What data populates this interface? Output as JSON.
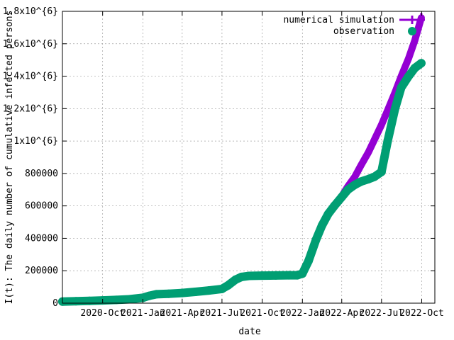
{
  "chart_data": {
    "type": "line",
    "xlabel": "date",
    "ylabel": "I(t): The daily number of cumulative infected persons",
    "xlim": [
      "2020-07-01",
      "2022-10-31"
    ],
    "ylim": [
      0,
      1800000
    ],
    "x_ticks": [
      {
        "date": "2020-10-01",
        "label": "2020-Oct"
      },
      {
        "date": "2021-01-01",
        "label": "2021-Jan"
      },
      {
        "date": "2021-04-01",
        "label": "2021-Apr"
      },
      {
        "date": "2021-07-01",
        "label": "2021-Jul"
      },
      {
        "date": "2021-10-01",
        "label": "2021-Oct"
      },
      {
        "date": "2022-01-01",
        "label": "2022-Jan"
      },
      {
        "date": "2022-04-01",
        "label": "2022-Apr"
      },
      {
        "date": "2022-07-01",
        "label": "2022-Jul"
      },
      {
        "date": "2022-10-01",
        "label": "2022-Oct"
      }
    ],
    "y_ticks": [
      {
        "value": 0,
        "label": "0"
      },
      {
        "value": 200000,
        "label": "200000"
      },
      {
        "value": 400000,
        "label": "400000"
      },
      {
        "value": 600000,
        "label": "600000"
      },
      {
        "value": 800000,
        "label": "800000"
      },
      {
        "value": 1000000,
        "label": "1x10^{6}"
      },
      {
        "value": 1200000,
        "label": "1.2x10^{6}"
      },
      {
        "value": 1400000,
        "label": "1.4x10^{6}"
      },
      {
        "value": 1600000,
        "label": "1.6x10^{6}"
      },
      {
        "value": 1800000,
        "label": "1.8x10^{6}"
      }
    ],
    "grid": true,
    "legend_position": "top-right",
    "series": [
      {
        "name": "numerical simulation",
        "color": "#9400d3",
        "marker": "line",
        "x": [
          "2020-07-01",
          "2020-08-01",
          "2020-09-01",
          "2020-10-01",
          "2020-11-01",
          "2020-12-01",
          "2021-01-01",
          "2021-01-15",
          "2021-02-01",
          "2021-03-01",
          "2021-04-01",
          "2021-05-01",
          "2021-06-01",
          "2021-07-01",
          "2021-07-15",
          "2021-08-01",
          "2021-08-15",
          "2021-09-01",
          "2021-10-01",
          "2021-11-01",
          "2021-12-01",
          "2021-12-20",
          "2022-01-01",
          "2022-01-15",
          "2022-02-01",
          "2022-02-15",
          "2022-03-01",
          "2022-03-15",
          "2022-04-01",
          "2022-04-15",
          "2022-05-01",
          "2022-05-15",
          "2022-06-01",
          "2022-06-15",
          "2022-07-01",
          "2022-07-15",
          "2022-08-01",
          "2022-08-15",
          "2022-09-01",
          "2022-09-15",
          "2022-09-30"
        ],
        "values": [
          10000,
          12000,
          14000,
          17000,
          20000,
          24000,
          33000,
          45000,
          55000,
          58000,
          63000,
          70000,
          78000,
          88000,
          110000,
          145000,
          162000,
          168000,
          170000,
          171000,
          172000,
          172000,
          182000,
          260000,
          390000,
          480000,
          550000,
          600000,
          660000,
          720000,
          780000,
          850000,
          930000,
          1010000,
          1100000,
          1190000,
          1300000,
          1400000,
          1510000,
          1620000,
          1760000
        ]
      },
      {
        "name": "observation",
        "color": "#009e73",
        "marker": "circle",
        "x": [
          "2020-07-01",
          "2020-08-01",
          "2020-09-01",
          "2020-10-01",
          "2020-11-01",
          "2020-12-01",
          "2021-01-01",
          "2021-01-15",
          "2021-02-01",
          "2021-03-01",
          "2021-04-01",
          "2021-05-01",
          "2021-06-01",
          "2021-07-01",
          "2021-07-15",
          "2021-08-01",
          "2021-08-15",
          "2021-09-01",
          "2021-10-01",
          "2021-11-01",
          "2021-12-01",
          "2021-12-20",
          "2022-01-01",
          "2022-01-15",
          "2022-02-01",
          "2022-02-15",
          "2022-03-01",
          "2022-03-15",
          "2022-04-01",
          "2022-04-15",
          "2022-05-01",
          "2022-05-15",
          "2022-06-01",
          "2022-06-15",
          "2022-07-01",
          "2022-07-15",
          "2022-08-01",
          "2022-08-15",
          "2022-09-01",
          "2022-09-15",
          "2022-09-30"
        ],
        "values": [
          10000,
          12000,
          14000,
          17000,
          20000,
          24000,
          33000,
          45000,
          55000,
          58000,
          63000,
          70000,
          78000,
          88000,
          110000,
          145000,
          162000,
          168000,
          170000,
          171000,
          172000,
          172000,
          182000,
          260000,
          390000,
          480000,
          550000,
          600000,
          655000,
          700000,
          730000,
          750000,
          765000,
          780000,
          810000,
          1000000,
          1200000,
          1330000,
          1400000,
          1450000,
          1480000
        ]
      }
    ]
  }
}
